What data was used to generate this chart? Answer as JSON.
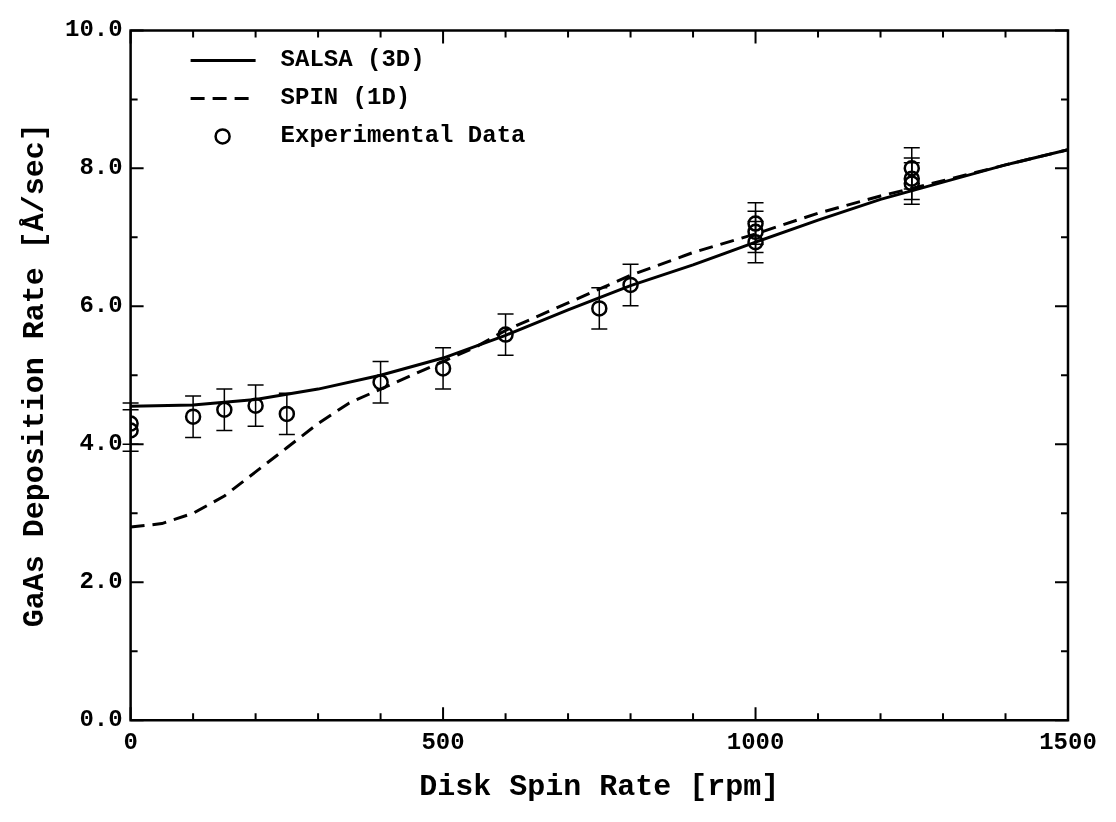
{
  "chart_data": {
    "type": "line",
    "xlabel": "Disk Spin Rate [rpm]",
    "ylabel": "GaAs Deposition Rate [Å/sec]",
    "xlim": [
      0,
      1500
    ],
    "xticks": [
      0,
      {
        "value": 100,
        "label": null
      },
      {
        "value": 200,
        "label": null
      },
      {
        "value": 300,
        "label": null
      },
      {
        "value": 400,
        "label": null
      },
      500,
      {
        "value": 600,
        "label": null
      },
      {
        "value": 700,
        "label": null
      },
      {
        "value": 800,
        "label": null
      },
      {
        "value": 900,
        "label": null
      },
      1000,
      {
        "value": 1100,
        "label": null
      },
      {
        "value": 1200,
        "label": null
      },
      {
        "value": 1300,
        "label": null
      },
      {
        "value": 1400,
        "label": null
      },
      1500
    ],
    "ylim": [
      0,
      10
    ],
    "yticks": [
      {
        "value": 0,
        "label": "0.0"
      },
      {
        "value": 1,
        "label": null
      },
      {
        "value": 2,
        "label": "2.0"
      },
      {
        "value": 3,
        "label": null
      },
      {
        "value": 4,
        "label": "4.0"
      },
      {
        "value": 5,
        "label": null
      },
      {
        "value": 6,
        "label": "6.0"
      },
      {
        "value": 7,
        "label": null
      },
      {
        "value": 8,
        "label": "8.0"
      },
      {
        "value": 9,
        "label": null
      },
      {
        "value": 10,
        "label": "10.0"
      }
    ],
    "grid": false,
    "legend": "top left",
    "series": [
      {
        "name": "SALSA (3D)",
        "color": "#000000",
        "line_style": "solid",
        "marker": "none",
        "x": [
          0,
          100,
          200,
          300,
          400,
          500,
          600,
          700,
          800,
          900,
          1000,
          1100,
          1200,
          1300,
          1400,
          1500
        ],
        "values": [
          4.55,
          4.57,
          4.65,
          4.8,
          5.0,
          5.25,
          5.58,
          5.95,
          6.3,
          6.6,
          6.93,
          7.25,
          7.55,
          7.8,
          8.05,
          8.27
        ]
      },
      {
        "name": "SPIN (1D)",
        "color": "#000000",
        "line_style": "dashed",
        "marker": "none",
        "x": [
          0,
          50,
          100,
          150,
          200,
          250,
          300,
          350,
          400,
          450,
          500,
          550,
          600,
          700,
          800,
          900,
          1000,
          1100,
          1200,
          1300,
          1400,
          1500
        ],
        "values": [
          2.8,
          2.85,
          3.0,
          3.25,
          3.6,
          3.95,
          4.3,
          4.6,
          4.8,
          5.0,
          5.2,
          5.4,
          5.65,
          6.05,
          6.45,
          6.78,
          7.05,
          7.35,
          7.6,
          7.82,
          8.05,
          8.27
        ]
      },
      {
        "name": "Experimental Data",
        "type": "scatter",
        "color": "#000000",
        "marker": "circle",
        "x": [
          0,
          0,
          100,
          150,
          200,
          250,
          400,
          500,
          600,
          750,
          800,
          1000,
          1000,
          1000,
          1250,
          1250,
          1250
        ],
        "values": [
          4.3,
          4.2,
          4.4,
          4.5,
          4.56,
          4.44,
          4.9,
          5.1,
          5.59,
          5.97,
          6.31,
          7.2,
          7.08,
          6.93,
          8.0,
          7.85,
          7.78
        ],
        "errors": [
          0.3,
          0.3,
          0.3,
          0.3,
          0.3,
          0.3,
          0.3,
          0.3,
          0.3,
          0.3,
          0.3,
          0.3,
          0.3,
          0.3,
          0.3,
          0.3,
          0.3
        ]
      }
    ]
  }
}
